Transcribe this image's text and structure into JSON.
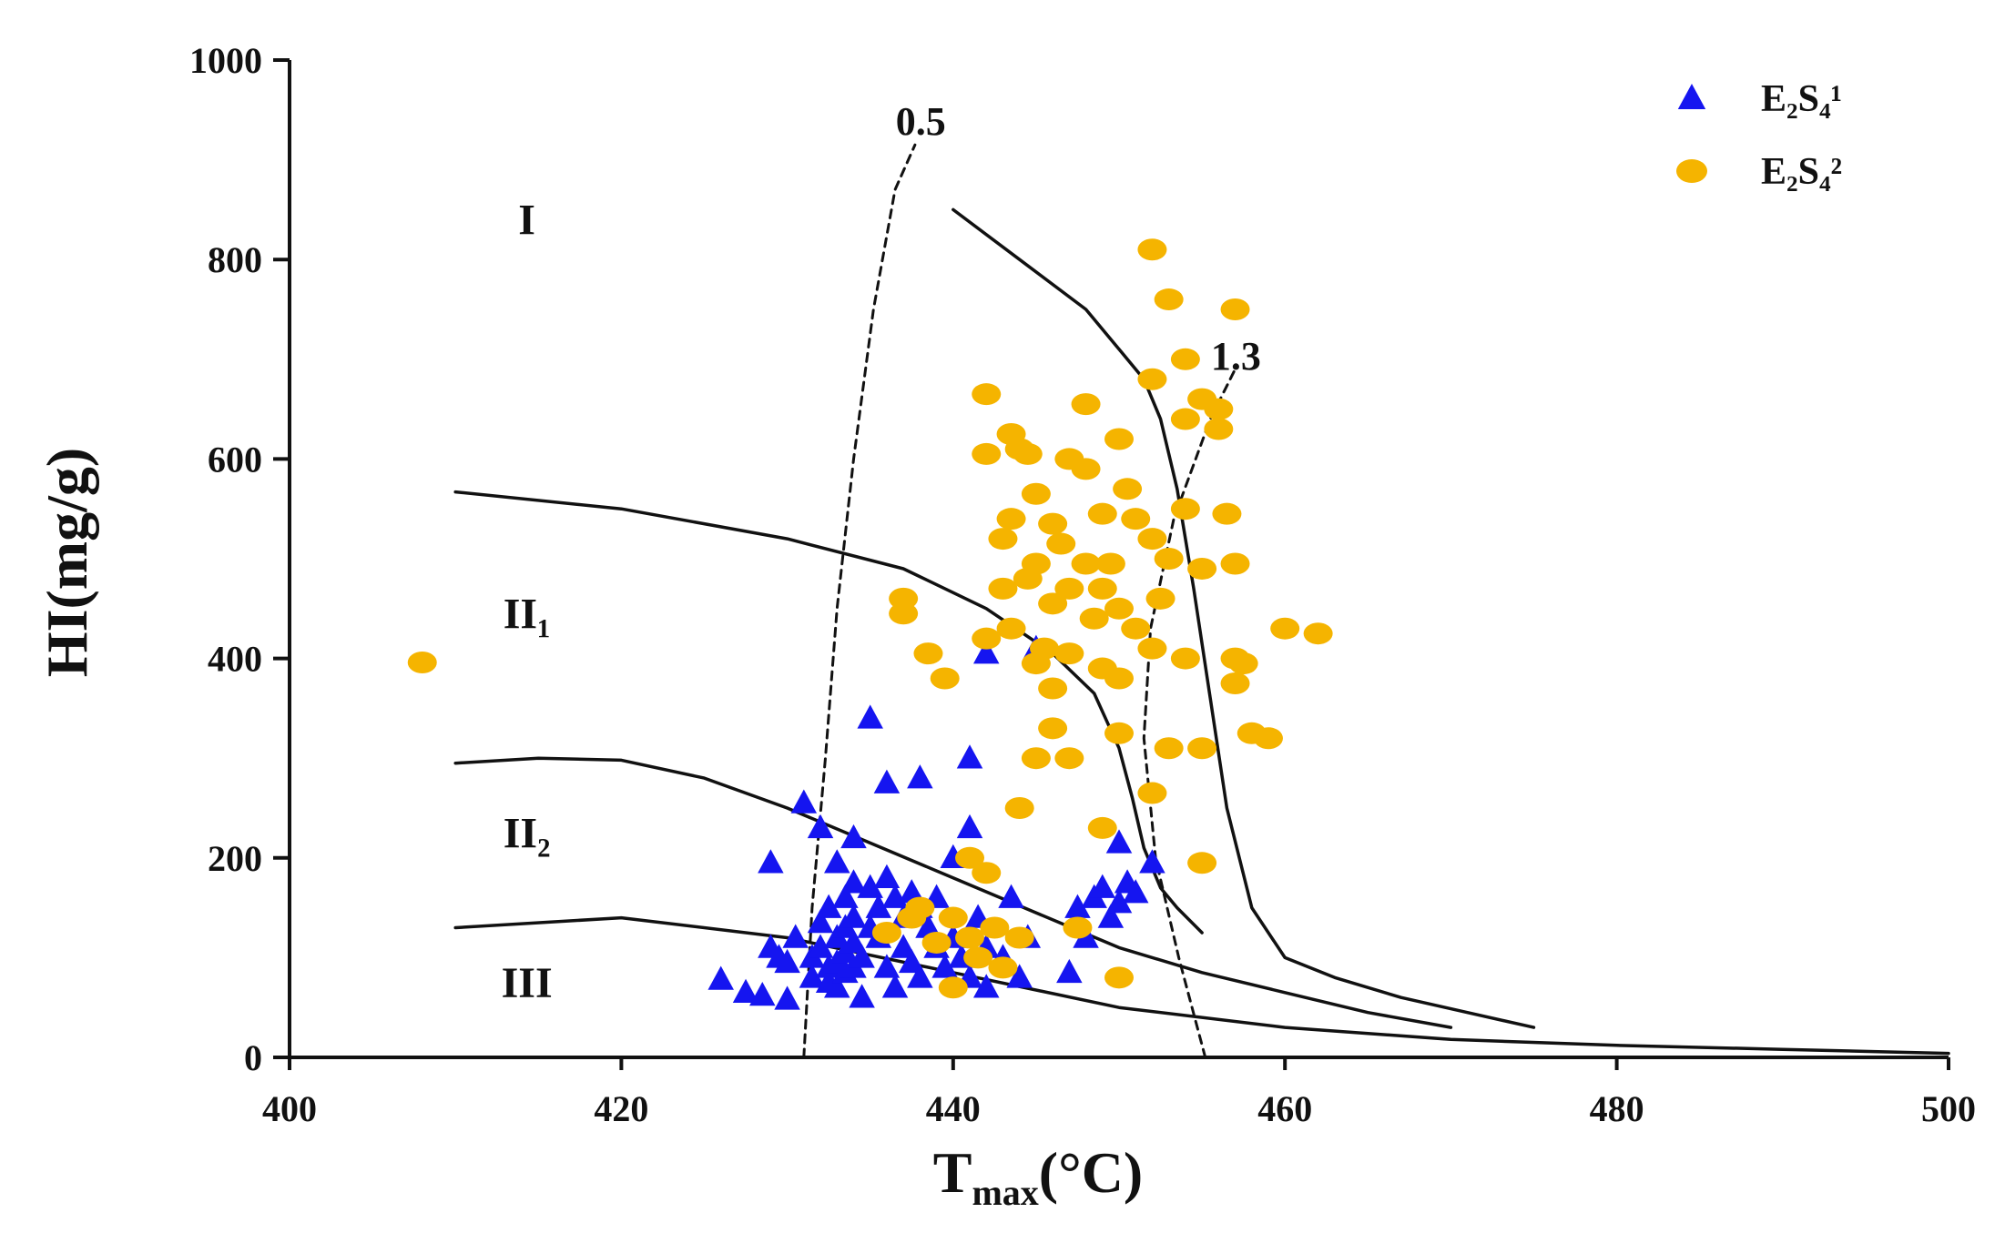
{
  "chart_data": {
    "type": "scatter",
    "title": "",
    "xlabel_main": "T",
    "xlabel_sub": "max",
    "xlabel_unit": "(°C)",
    "ylabel": "HI(mg/g)",
    "xlim": [
      400,
      500
    ],
    "ylim": [
      0,
      1000
    ],
    "x_ticks": [
      400,
      420,
      440,
      460,
      480,
      500
    ],
    "y_ticks": [
      0,
      200,
      400,
      600,
      800,
      1000
    ],
    "grid": false,
    "legend_position": "top-right",
    "colors": {
      "s1": "#1515f0",
      "s2": "#f5b400",
      "line": "#111111"
    },
    "region_labels": [
      {
        "text": "I",
        "x": 412,
        "y": 840
      },
      {
        "text": "II₁",
        "x": 412,
        "y": 445
      },
      {
        "text": "II₂",
        "x": 412,
        "y": 225
      },
      {
        "text": "III",
        "x": 412,
        "y": 75
      }
    ],
    "iso_labels": [
      {
        "text": "0.5",
        "x": 437.5,
        "y": 925
      },
      {
        "text": "1.3",
        "x": 456.5,
        "y": 690
      }
    ],
    "boundary_lines": [
      {
        "name": "I-II1 boundary",
        "style": "solid",
        "x": [
          440,
          444,
          448,
          450,
          451.5,
          452.5,
          453.5,
          454.5,
          455.5,
          456.5,
          458,
          460,
          463,
          467,
          471,
          475
        ],
        "y": [
          850,
          800,
          750,
          710,
          680,
          640,
          570,
          470,
          360,
          250,
          150,
          100,
          80,
          60,
          45,
          30
        ]
      },
      {
        "name": "II1-II2 boundary",
        "style": "solid",
        "x": [
          410,
          420,
          430,
          437,
          442,
          446,
          448.5,
          450,
          450.8,
          451.5,
          452.5,
          453.5,
          455
        ],
        "y": [
          567,
          550,
          520,
          490,
          450,
          405,
          365,
          310,
          260,
          210,
          170,
          150,
          125
        ]
      },
      {
        "name": "II2-III boundary",
        "style": "solid",
        "x": [
          410,
          415,
          420,
          425,
          430,
          435,
          440,
          445,
          450,
          455,
          460,
          465,
          470
        ],
        "y": [
          295,
          300,
          298,
          280,
          250,
          215,
          180,
          145,
          110,
          85,
          65,
          45,
          30
        ]
      },
      {
        "name": "III lower boundary",
        "style": "solid",
        "x": [
          410,
          420,
          430,
          440,
          450,
          460,
          470,
          480,
          490,
          500
        ],
        "y": [
          130,
          140,
          120,
          85,
          50,
          30,
          18,
          12,
          8,
          4
        ]
      },
      {
        "name": "Ro 0.5 iso-line",
        "style": "dashed",
        "x": [
          431.0,
          431.5,
          432.3,
          433.0,
          434.0,
          435.2,
          436.5,
          437.7
        ],
        "y": [
          0,
          150,
          300,
          450,
          600,
          750,
          870,
          915
        ]
      },
      {
        "name": "Ro 1.3 iso-line",
        "style": "dashed",
        "x": [
          455.2,
          453.6,
          452.2,
          451.5,
          451.9,
          453.3,
          455.5,
          457.0
        ],
        "y": [
          0,
          100,
          200,
          320,
          430,
          540,
          640,
          690
        ]
      }
    ],
    "series": [
      {
        "name": "E₂S₄¹",
        "marker": "triangle",
        "points": [
          [
            426,
            78
          ],
          [
            427.5,
            65
          ],
          [
            428.5,
            62
          ],
          [
            429,
            110
          ],
          [
            429,
            195
          ],
          [
            429.5,
            100
          ],
          [
            430,
            58
          ],
          [
            430,
            95
          ],
          [
            430.5,
            120
          ],
          [
            431,
            255
          ],
          [
            431.5,
            100
          ],
          [
            431.5,
            80
          ],
          [
            432,
            230
          ],
          [
            432,
            135
          ],
          [
            432,
            110
          ],
          [
            432.5,
            90
          ],
          [
            432.5,
            75
          ],
          [
            432.5,
            150
          ],
          [
            433,
            195
          ],
          [
            433,
            120
          ],
          [
            433,
            95
          ],
          [
            433,
            70
          ],
          [
            433.5,
            85
          ],
          [
            433.5,
            105
          ],
          [
            433.5,
            130
          ],
          [
            433.5,
            160
          ],
          [
            434,
            220
          ],
          [
            434,
            175
          ],
          [
            434,
            140
          ],
          [
            434,
            115
          ],
          [
            434,
            90
          ],
          [
            434.5,
            60
          ],
          [
            434.5,
            100
          ],
          [
            435,
            130
          ],
          [
            435,
            170
          ],
          [
            435,
            340
          ],
          [
            435.5,
            150
          ],
          [
            435.5,
            120
          ],
          [
            436,
            90
          ],
          [
            436,
            180
          ],
          [
            436,
            275
          ],
          [
            436.5,
            70
          ],
          [
            436.5,
            160
          ],
          [
            437,
            140
          ],
          [
            437,
            110
          ],
          [
            437.5,
            165
          ],
          [
            437.5,
            95
          ],
          [
            438,
            280
          ],
          [
            438,
            150
          ],
          [
            438,
            80
          ],
          [
            438.5,
            130
          ],
          [
            439,
            110
          ],
          [
            439,
            160
          ],
          [
            439.5,
            90
          ],
          [
            440,
            200
          ],
          [
            440,
            120
          ],
          [
            440.5,
            100
          ],
          [
            441,
            230
          ],
          [
            441,
            300
          ],
          [
            441,
            80
          ],
          [
            441.5,
            140
          ],
          [
            442,
            405
          ],
          [
            442,
            110
          ],
          [
            442,
            70
          ],
          [
            443,
            100
          ],
          [
            443.5,
            160
          ],
          [
            444,
            80
          ],
          [
            444.5,
            120
          ],
          [
            445,
            410
          ],
          [
            447,
            85
          ],
          [
            447.5,
            150
          ],
          [
            448,
            120
          ],
          [
            448.5,
            160
          ],
          [
            449,
            170
          ],
          [
            449.5,
            140
          ],
          [
            450,
            215
          ],
          [
            450,
            155
          ],
          [
            450.5,
            175
          ],
          [
            451,
            165
          ],
          [
            452,
            195
          ]
        ]
      },
      {
        "name": "E₂S₄²",
        "marker": "circle",
        "points": [
          [
            408,
            396
          ],
          [
            436,
            125
          ],
          [
            437,
            460
          ],
          [
            437,
            445
          ],
          [
            437.5,
            140
          ],
          [
            438,
            150
          ],
          [
            438.5,
            405
          ],
          [
            439,
            115
          ],
          [
            439.5,
            380
          ],
          [
            440,
            70
          ],
          [
            440,
            140
          ],
          [
            441,
            200
          ],
          [
            441,
            120
          ],
          [
            441.5,
            100
          ],
          [
            442,
            665
          ],
          [
            442,
            605
          ],
          [
            442,
            420
          ],
          [
            442,
            185
          ],
          [
            442.5,
            130
          ],
          [
            443,
            520
          ],
          [
            443,
            470
          ],
          [
            443,
            90
          ],
          [
            443.5,
            625
          ],
          [
            443.5,
            540
          ],
          [
            443.5,
            430
          ],
          [
            444,
            610
          ],
          [
            444,
            250
          ],
          [
            444,
            120
          ],
          [
            444.5,
            605
          ],
          [
            444.5,
            480
          ],
          [
            445,
            565
          ],
          [
            445,
            495
          ],
          [
            445,
            395
          ],
          [
            445,
            300
          ],
          [
            445.5,
            410
          ],
          [
            446,
            535
          ],
          [
            446,
            455
          ],
          [
            446,
            370
          ],
          [
            446,
            330
          ],
          [
            446.5,
            515
          ],
          [
            447,
            600
          ],
          [
            447,
            470
          ],
          [
            447,
            405
          ],
          [
            447,
            300
          ],
          [
            447.5,
            130
          ],
          [
            448,
            655
          ],
          [
            448,
            590
          ],
          [
            448,
            495
          ],
          [
            448.5,
            440
          ],
          [
            449,
            545
          ],
          [
            449,
            470
          ],
          [
            449,
            390
          ],
          [
            449,
            230
          ],
          [
            449.5,
            495
          ],
          [
            450,
            620
          ],
          [
            450,
            450
          ],
          [
            450,
            380
          ],
          [
            450,
            325
          ],
          [
            450,
            80
          ],
          [
            450.5,
            570
          ],
          [
            451,
            540
          ],
          [
            451,
            430
          ],
          [
            452,
            810
          ],
          [
            452,
            680
          ],
          [
            452,
            520
          ],
          [
            452,
            410
          ],
          [
            452,
            265
          ],
          [
            452.5,
            460
          ],
          [
            453,
            760
          ],
          [
            453,
            500
          ],
          [
            453,
            310
          ],
          [
            454,
            700
          ],
          [
            454,
            640
          ],
          [
            454,
            550
          ],
          [
            454,
            400
          ],
          [
            455,
            660
          ],
          [
            455,
            490
          ],
          [
            455,
            310
          ],
          [
            455,
            195
          ],
          [
            456,
            650
          ],
          [
            456,
            630
          ],
          [
            456.5,
            545
          ],
          [
            457,
            750
          ],
          [
            457,
            495
          ],
          [
            457,
            400
          ],
          [
            457,
            375
          ],
          [
            457.5,
            395
          ],
          [
            458,
            325
          ],
          [
            459,
            320
          ],
          [
            460,
            430
          ],
          [
            462,
            425
          ]
        ]
      }
    ]
  }
}
